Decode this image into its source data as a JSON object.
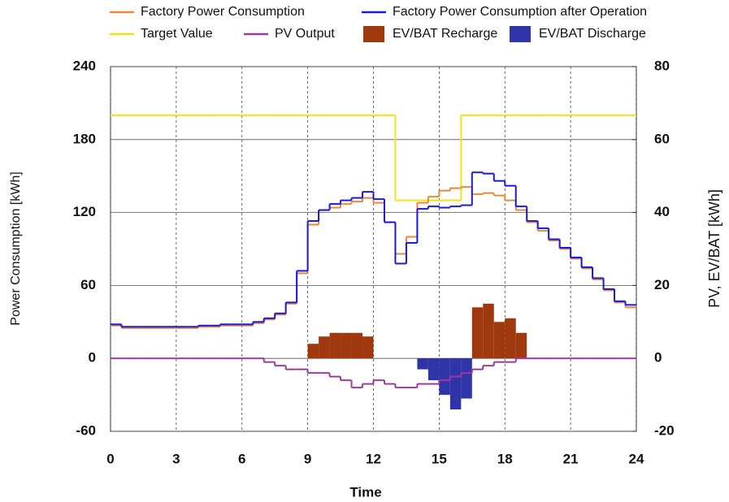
{
  "chart_data": {
    "type": "step",
    "xlabel": "Time",
    "ylabel": "Power Consumption [kWh]",
    "y2label": "PV, EV/BAT [kWh]",
    "x": [
      0,
      0.5,
      1,
      1.5,
      2,
      2.5,
      3,
      3.5,
      4,
      4.5,
      5,
      5.5,
      6,
      6.5,
      7,
      7.5,
      8,
      8.5,
      9,
      9.5,
      10,
      10.5,
      11,
      11.5,
      12,
      12.5,
      13,
      13.5,
      14,
      14.5,
      15,
      15.5,
      16,
      16.5,
      17,
      17.5,
      18,
      18.5,
      19,
      19.5,
      20,
      20.5,
      21,
      21.5,
      22,
      22.5,
      23,
      23.5
    ],
    "xlim": [
      0,
      24
    ],
    "xticks": [
      0,
      3,
      6,
      9,
      12,
      15,
      18,
      21,
      24
    ],
    "ylim": [
      -60,
      240
    ],
    "yticks": [
      -60,
      0,
      60,
      120,
      180,
      240
    ],
    "y2lim": [
      -20,
      80
    ],
    "y2ticks": [
      -20,
      0,
      20,
      40,
      60,
      80
    ],
    "grid": true,
    "series": [
      {
        "name": "Factory Power Consumption",
        "color": "#e8893a",
        "type": "step",
        "axis": "y",
        "values": [
          27,
          25,
          25,
          25,
          25,
          25,
          25,
          25,
          26,
          26,
          27,
          27,
          27,
          29,
          32,
          36,
          45,
          70,
          110,
          122,
          124,
          127,
          129,
          132,
          128,
          112,
          86,
          100,
          128,
          133,
          138,
          140,
          141,
          135,
          136,
          134,
          130,
          122,
          112,
          105,
          97,
          90,
          82,
          74,
          65,
          56,
          46,
          42
        ]
      },
      {
        "name": "Factory Power Consumption after Operation",
        "color": "#1a1adc",
        "type": "step",
        "axis": "y",
        "values": [
          28,
          26,
          26,
          26,
          26,
          26,
          26,
          26,
          27,
          27,
          28,
          28,
          28,
          30,
          33,
          37,
          46,
          72,
          113,
          122,
          127,
          130,
          132,
          137,
          131,
          112,
          78,
          95,
          123,
          125,
          124,
          125,
          126,
          153,
          152,
          146,
          142,
          125,
          113,
          107,
          98,
          91,
          83,
          75,
          66,
          57,
          47,
          44
        ]
      },
      {
        "name": "Target Value",
        "color": "#f2e21a",
        "type": "step",
        "axis": "y",
        "values": [
          200,
          200,
          200,
          200,
          200,
          200,
          200,
          200,
          200,
          200,
          200,
          200,
          200,
          200,
          200,
          200,
          200,
          200,
          200,
          200,
          200,
          200,
          200,
          200,
          200,
          200,
          130,
          130,
          130,
          130,
          130,
          130,
          200,
          200,
          200,
          200,
          200,
          200,
          200,
          200,
          200,
          200,
          200,
          200,
          200,
          200,
          200,
          200
        ]
      },
      {
        "name": "PV Output",
        "color": "#9b3b9b",
        "type": "step",
        "axis": "y2",
        "values": [
          0,
          0,
          0,
          0,
          0,
          0,
          0,
          0,
          0,
          0,
          0,
          0,
          0,
          0,
          -1,
          -2,
          -3,
          -3,
          -4,
          -4,
          -5,
          -6,
          -8,
          -7,
          -6,
          -7,
          -8,
          -8,
          -7,
          -7,
          -6,
          -5,
          -4,
          -3,
          -2,
          -1,
          -1,
          0,
          0,
          0,
          0,
          0,
          0,
          0,
          0,
          0,
          0,
          0
        ]
      },
      {
        "name": "EV/BAT Recharge",
        "color": "#a0380e",
        "type": "bar",
        "axis": "y2",
        "values": [
          0,
          0,
          0,
          0,
          0,
          0,
          0,
          0,
          0,
          0,
          0,
          0,
          0,
          0,
          0,
          0,
          0,
          0,
          4,
          6,
          7,
          7,
          7,
          6,
          0,
          0,
          0,
          0,
          0,
          0,
          0,
          0,
          0,
          14,
          15,
          10,
          11,
          7,
          0,
          0,
          0,
          0,
          0,
          0,
          0,
          0,
          0,
          0
        ]
      },
      {
        "name": "EV/BAT Discharge",
        "color": "#2f35a8",
        "type": "bar",
        "axis": "y2",
        "values": [
          0,
          0,
          0,
          0,
          0,
          0,
          0,
          0,
          0,
          0,
          0,
          0,
          0,
          0,
          0,
          0,
          0,
          0,
          0,
          0,
          0,
          0,
          0,
          0,
          0,
          0,
          0,
          0,
          -3,
          -6,
          -10,
          -14,
          -11,
          0,
          0,
          0,
          0,
          0,
          0,
          0,
          0,
          0,
          0,
          0,
          0,
          0,
          0,
          0
        ]
      }
    ]
  }
}
